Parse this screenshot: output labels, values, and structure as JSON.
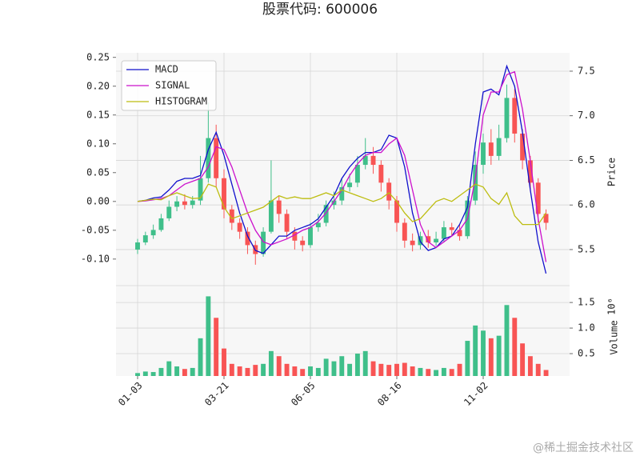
{
  "chart_data": {
    "type": "candlestick",
    "title": "股票代码: 600006",
    "watermark": "@稀土掘金技术社区",
    "xlim": [
      -2.75,
      55
    ],
    "xticks": [
      {
        "value": 0,
        "label": "01-03"
      },
      {
        "value": 11,
        "label": "03-21"
      },
      {
        "value": 22,
        "label": "06-05"
      },
      {
        "value": 33,
        "label": "08-16"
      },
      {
        "value": 44,
        "label": "11-02"
      }
    ],
    "ylim": [
      -0.146,
      0.258
    ],
    "yticks": [
      {
        "value": -0.1,
        "label": "-0.10"
      },
      -0.05,
      {
        "value": 0,
        "label": "0.00"
      },
      0.05,
      {
        "value": 0.1,
        "label": "0.10"
      },
      0.15,
      {
        "value": 0.2,
        "label": "0.20"
      },
      0.25
    ],
    "y2label": "Price",
    "y2lim": [
      5.096,
      7.706
    ],
    "y2ticks": [
      5.5,
      {
        "value": 6,
        "label": "6.0"
      },
      6.5,
      {
        "value": 7,
        "label": "7.0"
      },
      7.5
    ],
    "grid": true,
    "legend": "upper left",
    "up_color": "#3fbf8a",
    "down_color": "#f85454",
    "candles": {
      "open": [
        5.5,
        5.58,
        5.66,
        5.72,
        5.85,
        5.98,
        6.04,
        6.0,
        6.05,
        6.3,
        6.75,
        6.3,
        5.95,
        5.8,
        5.7,
        5.55,
        5.45,
        5.7,
        6.05,
        5.9,
        5.7,
        5.6,
        5.55,
        5.75,
        5.8,
        6.0,
        6.05,
        6.2,
        6.25,
        6.45,
        6.55,
        6.45,
        6.25,
        6.05,
        5.8,
        5.6,
        5.55,
        5.65,
        5.58,
        5.62,
        5.75,
        5.72,
        5.65,
        6.05,
        6.45,
        6.7,
        6.55,
        6.75,
        7.2,
        6.8,
        6.5,
        6.25,
        5.9
      ],
      "close": [
        5.58,
        5.66,
        5.72,
        5.85,
        5.98,
        6.04,
        6.0,
        6.05,
        6.3,
        6.75,
        6.3,
        5.95,
        5.8,
        5.7,
        5.55,
        5.45,
        5.7,
        6.05,
        5.9,
        5.7,
        5.6,
        5.55,
        5.75,
        5.8,
        6.0,
        6.05,
        6.2,
        6.25,
        6.45,
        6.55,
        6.45,
        6.25,
        6.05,
        5.8,
        5.6,
        5.55,
        5.65,
        5.58,
        5.62,
        5.75,
        5.72,
        5.65,
        6.05,
        6.45,
        6.7,
        6.55,
        6.75,
        7.2,
        6.8,
        6.5,
        6.25,
        5.9,
        5.8
      ],
      "high": [
        5.62,
        5.7,
        5.78,
        5.9,
        6.05,
        6.1,
        6.12,
        6.1,
        6.55,
        7.15,
        6.9,
        6.4,
        6.0,
        5.85,
        5.75,
        5.6,
        5.75,
        6.5,
        6.1,
        5.95,
        5.75,
        5.65,
        5.8,
        5.9,
        6.05,
        6.15,
        6.3,
        6.35,
        6.55,
        6.75,
        6.65,
        6.5,
        6.3,
        6.1,
        5.85,
        5.68,
        5.7,
        5.72,
        5.7,
        5.82,
        5.8,
        5.78,
        6.1,
        6.6,
        6.8,
        6.85,
        6.9,
        7.35,
        7.3,
        6.85,
        6.55,
        6.3,
        5.95
      ],
      "low": [
        5.45,
        5.55,
        5.62,
        5.7,
        5.82,
        5.93,
        5.95,
        5.96,
        6.0,
        6.25,
        6.2,
        5.85,
        5.72,
        5.62,
        5.45,
        5.33,
        5.42,
        5.68,
        5.8,
        5.62,
        5.5,
        5.48,
        5.52,
        5.7,
        5.76,
        5.95,
        6.0,
        6.15,
        6.2,
        6.4,
        6.35,
        6.15,
        5.95,
        5.7,
        5.52,
        5.48,
        5.5,
        5.52,
        5.54,
        5.58,
        5.65,
        5.6,
        5.62,
        6.0,
        6.35,
        6.45,
        6.5,
        6.7,
        6.7,
        6.4,
        6.15,
        5.8,
        5.72
      ]
    },
    "series": [
      {
        "name": "MACD",
        "color": "#1010cc",
        "values": [
          0.0,
          0.002,
          0.006,
          0.008,
          0.02,
          0.035,
          0.04,
          0.04,
          0.045,
          0.09,
          0.12,
          0.08,
          0.03,
          -0.02,
          -0.06,
          -0.085,
          -0.09,
          -0.075,
          -0.06,
          -0.06,
          -0.05,
          -0.045,
          -0.04,
          -0.03,
          -0.01,
          0.01,
          0.04,
          0.06,
          0.075,
          0.085,
          0.085,
          0.09,
          0.115,
          0.11,
          0.06,
          -0.02,
          -0.07,
          -0.085,
          -0.08,
          -0.065,
          -0.06,
          -0.04,
          -0.01,
          0.1,
          0.19,
          0.195,
          0.185,
          0.235,
          0.2,
          0.12,
          0.02,
          -0.07,
          -0.125
        ]
      },
      {
        "name": "SIGNAL",
        "color": "#cc10cc",
        "values": [
          0.0,
          0.001,
          0.003,
          0.005,
          0.01,
          0.02,
          0.03,
          0.035,
          0.04,
          0.06,
          0.095,
          0.09,
          0.06,
          0.02,
          -0.02,
          -0.05,
          -0.07,
          -0.075,
          -0.07,
          -0.065,
          -0.058,
          -0.05,
          -0.045,
          -0.035,
          -0.02,
          0.0,
          0.02,
          0.045,
          0.065,
          0.08,
          0.085,
          0.085,
          0.1,
          0.11,
          0.08,
          0.02,
          -0.04,
          -0.07,
          -0.08,
          -0.07,
          -0.06,
          -0.05,
          -0.03,
          0.04,
          0.15,
          0.19,
          0.19,
          0.22,
          0.225,
          0.16,
          0.07,
          -0.03,
          -0.105
        ]
      },
      {
        "name": "HISTOGRAM",
        "color": "#bdbd10",
        "values": [
          0.0,
          0.002,
          0.004,
          0.003,
          0.01,
          0.015,
          0.01,
          0.005,
          0.006,
          0.03,
          0.025,
          -0.01,
          -0.03,
          -0.025,
          -0.02,
          -0.015,
          -0.01,
          0.0,
          0.01,
          0.005,
          0.008,
          0.005,
          0.005,
          0.01,
          0.015,
          0.01,
          0.02,
          0.015,
          0.01,
          0.005,
          0.0,
          0.005,
          0.015,
          0.0,
          -0.02,
          -0.035,
          -0.03,
          -0.015,
          0.0,
          0.005,
          0.0,
          0.01,
          0.02,
          0.03,
          0.025,
          0.005,
          -0.005,
          0.015,
          -0.025,
          -0.04,
          -0.04,
          -0.04,
          -0.02
        ]
      }
    ],
    "volume": {
      "ylabel": "Volume",
      "offset_label": "10⁶",
      "ylim": [
        0.0625,
        1.83
      ],
      "yticks": [
        0.5,
        {
          "value": 1,
          "label": "1.0"
        },
        1.5
      ],
      "values": [
        0.12,
        0.15,
        0.14,
        0.22,
        0.35,
        0.25,
        0.2,
        0.22,
        0.8,
        1.62,
        1.2,
        0.6,
        0.3,
        0.25,
        0.22,
        0.28,
        0.3,
        0.55,
        0.45,
        0.3,
        0.25,
        0.2,
        0.25,
        0.22,
        0.4,
        0.35,
        0.45,
        0.3,
        0.5,
        0.55,
        0.35,
        0.3,
        0.28,
        0.3,
        0.32,
        0.25,
        0.22,
        0.2,
        0.18,
        0.22,
        0.2,
        0.3,
        0.75,
        1.05,
        0.95,
        0.8,
        0.85,
        1.45,
        1.2,
        0.7,
        0.45,
        0.3,
        0.18
      ]
    }
  }
}
